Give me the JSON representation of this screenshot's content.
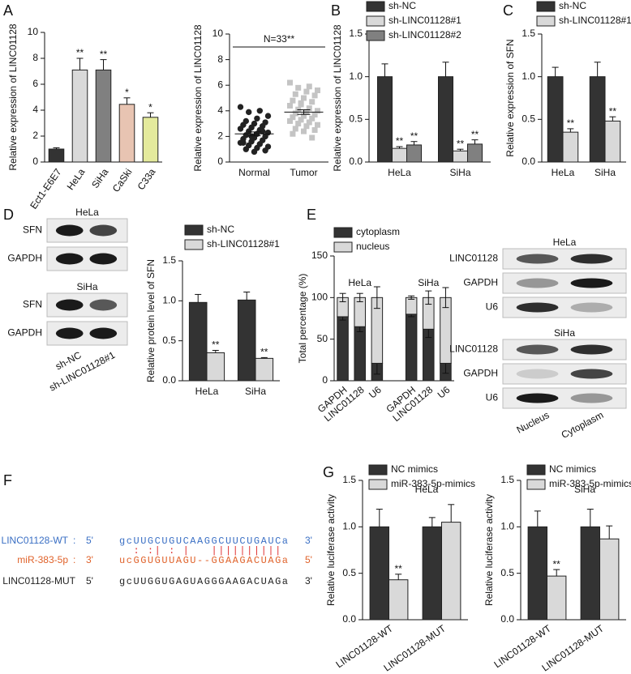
{
  "panels": [
    "A",
    "B",
    "C",
    "D",
    "E",
    "F",
    "G"
  ],
  "chart_data": [
    {
      "type": "bar",
      "ylabel": "Relative expression of LINC01128",
      "categories": [
        "Ect1-E6E7",
        "HeLa",
        "SiHa",
        "CaSki",
        "C33a"
      ],
      "values": [
        1.0,
        7.1,
        7.1,
        4.45,
        3.45
      ],
      "errors": [
        0.1,
        0.9,
        0.8,
        0.5,
        0.35
      ],
      "significance": [
        null,
        "**",
        "**",
        "*",
        "*"
      ],
      "colors": [
        "#333333",
        "#d9d9d9",
        "#808080",
        "#e8c4b2",
        "#e4ea9c"
      ],
      "ylim": [
        0,
        10
      ],
      "yticks": [
        0,
        2,
        4,
        6,
        8,
        10
      ]
    },
    {
      "type": "strip",
      "ylabel": "Relative expression of LINC01128",
      "annotation": "N=33**",
      "ylim": [
        0,
        10
      ],
      "yticks": [
        0,
        2,
        4,
        6,
        8,
        10
      ],
      "series": [
        {
          "name": "Normal",
          "color": "#222222",
          "marker": "circle",
          "mean": 2.2,
          "sem": 0.15,
          "values": [
            4.3,
            4.0,
            3.9,
            3.6,
            3.4,
            3.2,
            3.1,
            3.0,
            2.9,
            2.8,
            2.7,
            2.6,
            2.5,
            2.4,
            2.3,
            2.2,
            2.1,
            2.0,
            1.9,
            1.8,
            1.7,
            1.6,
            1.5,
            1.4,
            1.3,
            1.2,
            1.1,
            1.0,
            0.9,
            0.8,
            1.5,
            2.4,
            2.0
          ]
        },
        {
          "name": "Tumor",
          "color": "#c4c4c4",
          "marker": "square",
          "mean": 3.9,
          "sem": 0.18,
          "values": [
            6.2,
            5.9,
            5.8,
            5.6,
            5.5,
            5.3,
            5.2,
            5.0,
            4.8,
            4.7,
            4.5,
            4.4,
            4.2,
            4.1,
            4.0,
            3.9,
            3.8,
            3.7,
            3.6,
            3.5,
            3.4,
            3.3,
            3.2,
            3.1,
            3.0,
            2.9,
            2.8,
            2.6,
            2.5,
            2.4,
            2.2,
            1.9,
            4.6
          ]
        }
      ]
    },
    {
      "type": "grouped_bar",
      "ylabel": "Relative expression of LINC01128",
      "categories": [
        "HeLa",
        "SiHa"
      ],
      "ylim": [
        0,
        1.5
      ],
      "yticks": [
        {
          "value": 0,
          "label": "0.0"
        },
        0.5,
        {
          "value": 1,
          "label": "1.0"
        },
        1.5
      ],
      "series": [
        {
          "name": "sh-NC",
          "color": "#333333",
          "values": [
            1.0,
            1.0
          ],
          "errors": [
            0.15,
            0.17
          ],
          "significance": [
            null,
            null
          ]
        },
        {
          "name": "sh-LINC01128#1",
          "color": "#d9d9d9",
          "values": [
            0.16,
            0.13
          ],
          "errors": [
            0.02,
            0.02
          ],
          "significance": [
            "**",
            "**"
          ]
        },
        {
          "name": "sh-LINC01128#2",
          "color": "#808080",
          "values": [
            0.2,
            0.21
          ],
          "errors": [
            0.04,
            0.05
          ],
          "significance": [
            "**",
            "**"
          ]
        }
      ]
    },
    {
      "type": "grouped_bar",
      "ylabel": "Relative expression of SFN",
      "categories": [
        "HeLa",
        "SiHa"
      ],
      "ylim": [
        0,
        1.5
      ],
      "yticks": [
        {
          "value": 0,
          "label": "0.0"
        },
        0.5,
        {
          "value": 1,
          "label": "1.0"
        },
        1.5
      ],
      "series": [
        {
          "name": "sh-NC",
          "color": "#333333",
          "values": [
            1.0,
            1.0
          ],
          "errors": [
            0.11,
            0.17
          ],
          "significance": [
            null,
            null
          ]
        },
        {
          "name": "sh-LINC01128#1",
          "color": "#d9d9d9",
          "values": [
            0.35,
            0.48
          ],
          "errors": [
            0.04,
            0.05
          ],
          "significance": [
            "**",
            "**"
          ]
        }
      ]
    },
    {
      "type": "grouped_bar",
      "ylabel": "Relative protein level of SFN",
      "categories": [
        "HeLa",
        "SiHa"
      ],
      "ylim": [
        0,
        1.5
      ],
      "yticks": [
        {
          "value": 0,
          "label": "0.0"
        },
        0.5,
        {
          "value": 1,
          "label": "1.0"
        },
        1.5
      ],
      "series": [
        {
          "name": "sh-NC",
          "color": "#333333",
          "values": [
            0.98,
            1.01
          ],
          "errors": [
            0.1,
            0.1
          ],
          "significance": [
            null,
            null
          ]
        },
        {
          "name": "sh-LINC01128#1",
          "color": "#d9d9d9",
          "values": [
            0.35,
            0.28
          ],
          "errors": [
            0.03,
            0.01
          ],
          "significance": [
            "**",
            "**"
          ]
        }
      ]
    },
    {
      "type": "stacked_bar",
      "ylabel": "Total percentage (%)",
      "groups": [
        "HeLa",
        "SiHa"
      ],
      "categories": [
        "GAPDH",
        "LINC01128",
        "U6",
        "GAPDH",
        "LINC01128",
        "U6"
      ],
      "ylim": [
        0,
        150
      ],
      "yticks": [
        0,
        50,
        100,
        150
      ],
      "series": [
        {
          "name": "cytoplasm",
          "color": "#333333",
          "values": [
            77,
            65,
            21,
            80,
            62,
            21
          ],
          "errors": [
            4,
            6,
            13,
            3,
            10,
            12
          ]
        },
        {
          "name": "nucleus",
          "color": "#d9d9d9",
          "values": [
            23,
            35,
            79,
            20,
            38,
            79
          ],
          "errors": [
            5,
            5,
            13,
            2,
            8,
            12
          ]
        }
      ]
    },
    {
      "type": "grouped_bar",
      "title": "HeLa",
      "ylabel": "Relative luciferase activity",
      "categories": [
        "LINC01128-WT",
        "LINC01128-MUT"
      ],
      "ylim": [
        0,
        1.5
      ],
      "yticks": [
        {
          "value": 0,
          "label": "0.0"
        },
        0.5,
        {
          "value": 1,
          "label": "1.0"
        },
        1.5
      ],
      "series": [
        {
          "name": "NC mimics",
          "color": "#333333",
          "values": [
            1.0,
            1.0
          ],
          "errors": [
            0.19,
            0.1
          ],
          "significance": [
            null,
            null
          ]
        },
        {
          "name": "miR-383-5p-mimics",
          "color": "#d9d9d9",
          "values": [
            0.43,
            1.05
          ],
          "errors": [
            0.06,
            0.19
          ],
          "significance": [
            "**",
            null
          ]
        }
      ]
    },
    {
      "type": "grouped_bar",
      "title": "SiHa",
      "ylabel": "Relative luciferase activity",
      "categories": [
        "LINC01128-WT",
        "LINC01128-MUT"
      ],
      "ylim": [
        0,
        1.5
      ],
      "yticks": [
        {
          "value": 0,
          "label": "0.0"
        },
        0.5,
        {
          "value": 1,
          "label": "1.0"
        },
        1.5
      ],
      "series": [
        {
          "name": "NC mimics",
          "color": "#333333",
          "values": [
            1.0,
            1.0
          ],
          "errors": [
            0.17,
            0.19
          ],
          "significance": [
            null,
            null
          ]
        },
        {
          "name": "miR-383-5p-mimics",
          "color": "#d9d9d9",
          "values": [
            0.47,
            0.87
          ],
          "errors": [
            0.07,
            0.14
          ],
          "significance": [
            "**",
            null
          ]
        }
      ]
    }
  ],
  "blot_D": {
    "sections": [
      {
        "title": "HeLa",
        "rows": [
          "SFN",
          "GAPDH"
        ]
      },
      {
        "title": "SiHa",
        "rows": [
          "SFN",
          "GAPDH"
        ]
      }
    ],
    "lanes": [
      "sh-NC",
      "sh-LINC01128#1"
    ]
  },
  "blot_E": {
    "sections": [
      {
        "title": "HeLa",
        "rows": [
          "LINC01128",
          "GAPDH",
          "U6"
        ]
      },
      {
        "title": "SiHa",
        "rows": [
          "LINC01128",
          "GAPDH",
          "U6"
        ]
      }
    ],
    "lanes": [
      "Nucleus",
      "Cytoplasm"
    ]
  },
  "sequences": {
    "pairing": "  : :| : |   |||||||||| ",
    "pairing_color": "#e03030",
    "lines": [
      {
        "name": "LINC01128-WT",
        "sep": ":",
        "left": "5'",
        "seq": "gcUUGCUGUCAAGGCUUCUGAUCa",
        "right": "3'",
        "color": "#3a6fc4"
      },
      {
        "name": "miR-383-5p",
        "sep": ":",
        "left": "3'",
        "seq": "ucGGUGUUAGU--GGAAGACUAGa",
        "right": "5'",
        "color": "#e0622a"
      },
      {
        "name": "LINC01128-MUT",
        "left": "5'",
        "seq": "gcUUGGUGAGUAGGGAAGACUAGa",
        "right": "3'",
        "color": "#222222"
      }
    ]
  }
}
